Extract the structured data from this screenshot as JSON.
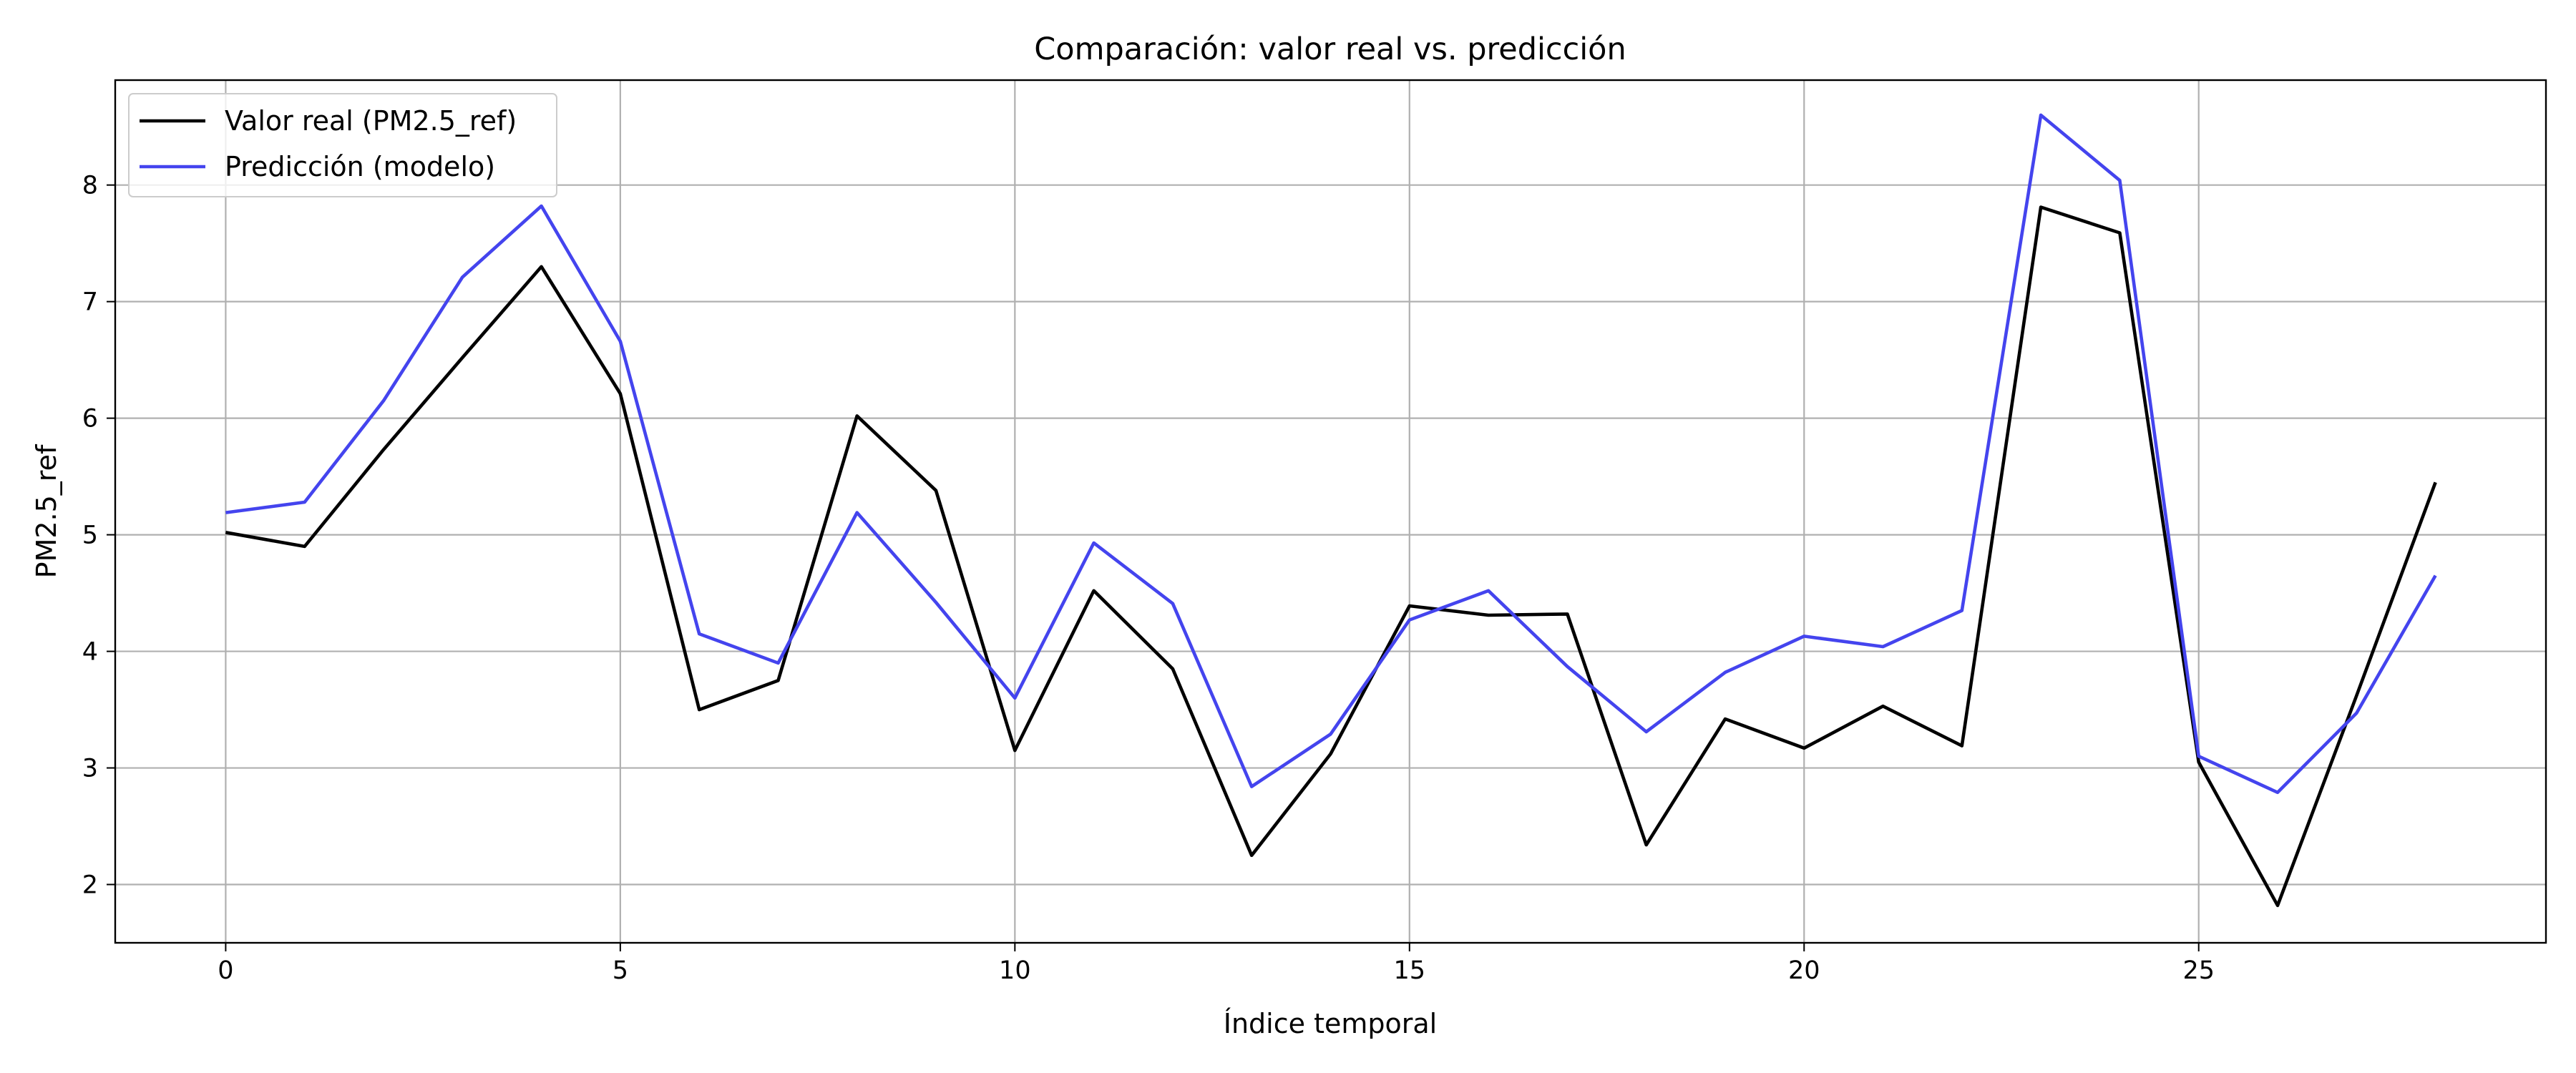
{
  "chart_data": {
    "type": "line",
    "title": "Comparación: valor real vs. predicción",
    "xlabel": "Índice temporal",
    "ylabel": "PM2.5_ref",
    "xlim": [
      -1.4,
      29.4
    ],
    "ylim": [
      1.5,
      8.9
    ],
    "xticks": [
      0,
      5,
      10,
      15,
      20,
      25
    ],
    "yticks": [
      2,
      3,
      4,
      5,
      6,
      7,
      8
    ],
    "grid": true,
    "legend_position": "upper-left",
    "x": [
      0,
      1,
      2,
      3,
      4,
      5,
      6,
      7,
      8,
      9,
      10,
      11,
      12,
      13,
      14,
      15,
      16,
      17,
      18,
      19,
      20,
      21,
      22,
      23,
      24,
      25,
      26,
      27,
      28
    ],
    "series": [
      {
        "name": "Valor real (PM2.5_ref)",
        "color": "#000000",
        "values": [
          5.02,
          4.9,
          5.73,
          6.52,
          7.3,
          6.21,
          3.5,
          3.75,
          6.02,
          5.38,
          3.15,
          4.52,
          3.85,
          2.25,
          3.12,
          4.39,
          4.31,
          4.32,
          2.34,
          3.42,
          3.17,
          3.53,
          3.19,
          7.81,
          7.59,
          3.05,
          1.82,
          3.62,
          5.45
        ]
      },
      {
        "name": "Predicción (modelo)",
        "color": "#4444ee",
        "values": [
          5.19,
          5.28,
          6.15,
          7.21,
          7.82,
          6.66,
          4.15,
          3.9,
          5.19,
          4.42,
          3.6,
          4.93,
          4.41,
          2.84,
          3.29,
          4.27,
          4.52,
          3.87,
          3.31,
          3.82,
          4.13,
          4.04,
          4.35,
          8.6,
          8.04,
          3.1,
          2.79,
          3.47,
          4.65
        ]
      }
    ]
  }
}
